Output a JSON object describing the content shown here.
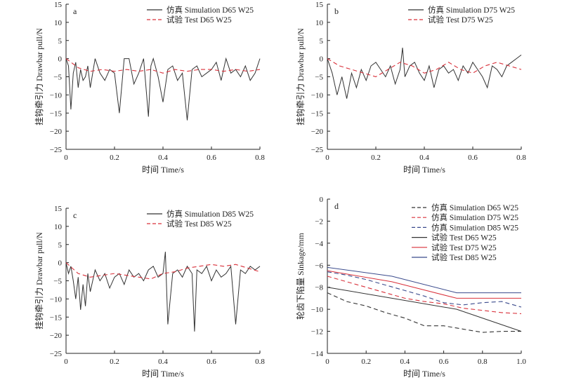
{
  "colors": {
    "simulation_dark": "#333333",
    "test_red": "#d9303a",
    "d75_blue": "#3a4a8c",
    "d85_black": "#333333"
  },
  "chart_data": [
    {
      "panel_letter": "a",
      "type": "line",
      "xlabel": "时间 Time/s",
      "ylabel": "挂钩牵引力 Drawbar pull/N",
      "xlim": [
        0,
        0.8
      ],
      "ylim": [
        -25,
        15
      ],
      "xticks": [
        "0",
        "0.2",
        "0.4",
        "0.6",
        "0.8"
      ],
      "yticks": [
        "15",
        "10",
        "5",
        "0",
        "−5",
        "−10",
        "−15",
        "−20",
        "−25"
      ],
      "legend_placement": "top-right",
      "series": [
        {
          "name": "仿真 Simulation D65 W25",
          "style": "solid",
          "color": "#333333",
          "x": [
            0,
            0.01,
            0.02,
            0.03,
            0.04,
            0.05,
            0.06,
            0.07,
            0.08,
            0.09,
            0.1,
            0.12,
            0.14,
            0.16,
            0.18,
            0.2,
            0.22,
            0.24,
            0.26,
            0.28,
            0.3,
            0.32,
            0.34,
            0.35,
            0.36,
            0.38,
            0.4,
            0.42,
            0.44,
            0.46,
            0.48,
            0.5,
            0.52,
            0.54,
            0.56,
            0.58,
            0.6,
            0.62,
            0.64,
            0.66,
            0.68,
            0.7,
            0.72,
            0.74,
            0.76,
            0.78,
            0.8
          ],
          "y": [
            0,
            -2,
            -14,
            -4,
            -1,
            -8,
            -3,
            -6,
            -5,
            -2,
            -8,
            0,
            -4,
            -6,
            -3,
            -4,
            -15,
            0,
            0,
            -7,
            -4,
            0,
            -16,
            -2,
            0,
            -5,
            -12,
            -3,
            -2,
            -6,
            -4,
            -17,
            -3,
            -2,
            -5,
            -4,
            -3,
            -1,
            -6,
            0,
            -4,
            -3,
            -5,
            -2,
            -6,
            -4,
            0
          ]
        },
        {
          "name": "试验 Test D65 W25",
          "style": "dashed",
          "color": "#d9303a",
          "x": [
            0,
            0.05,
            0.1,
            0.15,
            0.2,
            0.25,
            0.3,
            0.35,
            0.4,
            0.45,
            0.5,
            0.55,
            0.6,
            0.65,
            0.7,
            0.75,
            0.8
          ],
          "y": [
            0,
            -2.5,
            -3.5,
            -3,
            -3.5,
            -3,
            -3.5,
            -3,
            -4,
            -3,
            -3.5,
            -3,
            -3,
            -3.5,
            -3,
            -3.5,
            -3
          ]
        }
      ]
    },
    {
      "panel_letter": "b",
      "type": "line",
      "xlabel": "时间 Time/s",
      "ylabel": "挂钩牵引力 Drawbar pull/N",
      "xlim": [
        0,
        0.8
      ],
      "ylim": [
        -25,
        15
      ],
      "xticks": [
        "0",
        "0.2",
        "0.4",
        "0.6",
        "0.8"
      ],
      "yticks": [
        "15",
        "10",
        "5",
        "0",
        "−5",
        "−10",
        "−15",
        "−20",
        "−25"
      ],
      "legend_placement": "top-right",
      "series": [
        {
          "name": "仿真 Simulation D75 W25",
          "style": "solid",
          "color": "#333333",
          "x": [
            0,
            0.02,
            0.04,
            0.06,
            0.08,
            0.1,
            0.12,
            0.14,
            0.16,
            0.18,
            0.2,
            0.22,
            0.24,
            0.26,
            0.28,
            0.3,
            0.31,
            0.32,
            0.34,
            0.36,
            0.38,
            0.4,
            0.42,
            0.44,
            0.46,
            0.48,
            0.5,
            0.52,
            0.54,
            0.56,
            0.58,
            0.6,
            0.62,
            0.64,
            0.66,
            0.68,
            0.7,
            0.72,
            0.74,
            0.76,
            0.78,
            0.8
          ],
          "y": [
            0,
            -4,
            -10,
            -5,
            -11,
            -4,
            -8,
            -3,
            -6,
            -2,
            -1,
            -3,
            -5,
            -2,
            -7,
            -3,
            3,
            -5,
            -2,
            -1,
            -4,
            -6,
            -2,
            -8,
            -3,
            -2,
            -4,
            -3,
            -6,
            -2,
            -4,
            -1,
            -3,
            -5,
            -8,
            -2,
            -3,
            -5,
            -2,
            -1,
            0,
            1
          ]
        },
        {
          "name": "试验 Test D75 W25",
          "style": "dashed",
          "color": "#d9303a",
          "x": [
            0,
            0.05,
            0.1,
            0.15,
            0.2,
            0.25,
            0.3,
            0.35,
            0.4,
            0.45,
            0.5,
            0.55,
            0.6,
            0.65,
            0.7,
            0.75,
            0.8
          ],
          "y": [
            0,
            -2,
            -3,
            -4,
            -5,
            -3,
            -1,
            -2,
            -4,
            -3,
            -1,
            -3,
            -4,
            -2,
            -1,
            -2,
            -3
          ]
        }
      ]
    },
    {
      "panel_letter": "c",
      "type": "line",
      "xlabel": "时间 Time/s",
      "ylabel": "挂钩牵引力 Drawbar pull/N",
      "xlim": [
        0,
        0.8
      ],
      "ylim": [
        -25,
        15
      ],
      "xticks": [
        "0",
        "0.2",
        "0.4",
        "0.6",
        "0.8"
      ],
      "yticks": [
        "15",
        "10",
        "5",
        "0",
        "−5",
        "−10",
        "−15",
        "−20",
        "−25"
      ],
      "legend_placement": "top-right",
      "series": [
        {
          "name": "仿真 Simulation D85 W25",
          "style": "solid",
          "color": "#333333",
          "x": [
            0,
            0.01,
            0.02,
            0.03,
            0.04,
            0.05,
            0.06,
            0.07,
            0.08,
            0.09,
            0.1,
            0.12,
            0.14,
            0.16,
            0.18,
            0.2,
            0.22,
            0.24,
            0.26,
            0.28,
            0.3,
            0.32,
            0.34,
            0.36,
            0.38,
            0.4,
            0.41,
            0.42,
            0.44,
            0.46,
            0.48,
            0.5,
            0.52,
            0.53,
            0.54,
            0.56,
            0.58,
            0.6,
            0.62,
            0.64,
            0.66,
            0.68,
            0.7,
            0.72,
            0.74,
            0.76,
            0.78,
            0.8
          ],
          "y": [
            0,
            -3,
            -1,
            -5,
            -10,
            -4,
            -13,
            -6,
            -12,
            -3,
            -8,
            -2,
            -5,
            -3,
            -7,
            -4,
            -3,
            -6,
            -2,
            -4,
            -3,
            -5,
            -2,
            -1,
            -4,
            -3,
            3,
            -17,
            -3,
            -2,
            -4,
            -1,
            -3,
            -19,
            -2,
            -3,
            -1,
            -5,
            -2,
            -4,
            -3,
            -1,
            -17,
            -2,
            -3,
            -1,
            -2,
            -1
          ]
        },
        {
          "name": "试验 Test D85 W25",
          "style": "dashed",
          "color": "#d9303a",
          "x": [
            0,
            0.05,
            0.1,
            0.15,
            0.2,
            0.25,
            0.3,
            0.35,
            0.4,
            0.45,
            0.5,
            0.55,
            0.6,
            0.65,
            0.7,
            0.75,
            0.8
          ],
          "y": [
            0,
            -3,
            -4,
            -3.5,
            -3,
            -3.5,
            -4,
            -4.5,
            -3,
            -2.5,
            -1.5,
            -1,
            -0.5,
            -1,
            -0.5,
            -1.5,
            -2.5
          ]
        }
      ]
    },
    {
      "panel_letter": "d",
      "type": "line",
      "xlabel": "时间 Time/s",
      "ylabel": "轮齿下陷量 Sinkage/mm",
      "xlim": [
        0,
        1.0
      ],
      "ylim": [
        -14,
        0
      ],
      "xticks": [
        "0",
        "0.2",
        "0.4",
        "0.6",
        "0.8",
        "1.0"
      ],
      "yticks": [
        "0",
        "−2",
        "−4",
        "−6",
        "−8",
        "−10",
        "−12",
        "−14"
      ],
      "legend_placement": "top-right",
      "series": [
        {
          "name": "仿真 Simulation D65 W25",
          "style": "dashed",
          "color": "#333333",
          "x": [
            0,
            0.1,
            0.2,
            0.3,
            0.4,
            0.5,
            0.6,
            0.7,
            0.8,
            0.9,
            1.0
          ],
          "y": [
            -8.5,
            -9.3,
            -9.7,
            -10.3,
            -10.8,
            -11.5,
            -11.5,
            -11.8,
            -12.1,
            -12.0,
            -12.0
          ]
        },
        {
          "name": "仿真 Simulation D75 W25",
          "style": "dashed",
          "color": "#d9303a",
          "x": [
            0,
            0.1,
            0.2,
            0.3,
            0.4,
            0.5,
            0.6,
            0.7,
            0.8,
            0.9,
            1.0
          ],
          "y": [
            -7.0,
            -7.5,
            -8.0,
            -8.5,
            -9.0,
            -9.3,
            -9.5,
            -9.9,
            -10.1,
            -10.3,
            -10.4
          ]
        },
        {
          "name": "仿真 Simulation D85 W25",
          "style": "dashed",
          "color": "#3a4a8c",
          "x": [
            0,
            0.1,
            0.2,
            0.3,
            0.4,
            0.5,
            0.6,
            0.7,
            0.8,
            0.9,
            1.0
          ],
          "y": [
            -6.6,
            -6.9,
            -7.3,
            -7.8,
            -8.3,
            -8.8,
            -9.4,
            -9.6,
            -9.4,
            -9.3,
            -9.8
          ]
        },
        {
          "name": "试验 Test D65 W25",
          "style": "solid",
          "color": "#333333",
          "x": [
            0,
            0.333,
            0.667,
            1.0
          ],
          "y": [
            -8.0,
            -9.0,
            -10.0,
            -12.0
          ]
        },
        {
          "name": "试验 Test D75 W25",
          "style": "solid",
          "color": "#d9303a",
          "x": [
            0,
            0.333,
            0.667,
            1.0
          ],
          "y": [
            -6.5,
            -7.5,
            -9.0,
            -9.0
          ]
        },
        {
          "name": "试验 Test D85 W25",
          "style": "solid",
          "color": "#3a4a8c",
          "x": [
            0,
            0.333,
            0.667,
            1.0
          ],
          "y": [
            -6.2,
            -7.0,
            -8.5,
            -8.5
          ]
        }
      ]
    }
  ]
}
